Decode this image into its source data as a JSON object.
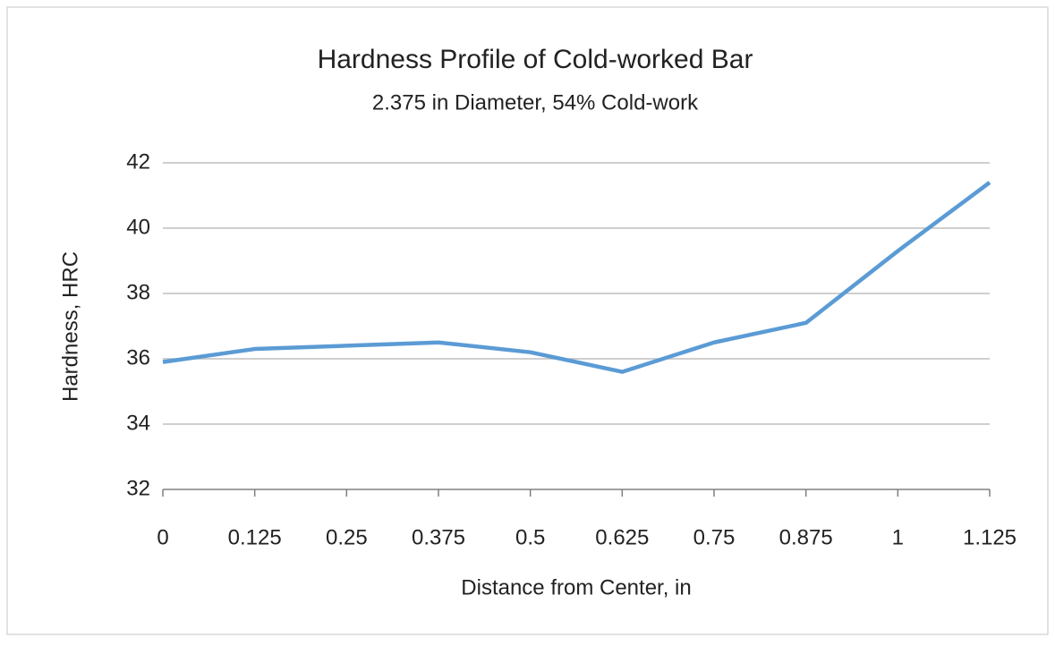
{
  "chart_data": {
    "type": "line",
    "title": "Hardness Profile of Cold-worked Bar",
    "subtitle": "2.375 in Diameter, 54% Cold-work",
    "x_label": "Distance from Center, in",
    "y_label": "Hardness, HRC",
    "x": [
      0,
      0.125,
      0.25,
      0.375,
      0.5,
      0.625,
      0.75,
      0.875,
      1,
      1.125
    ],
    "series": [
      {
        "name": "Hardness",
        "color": "#5b9bd5",
        "values": [
          35.9,
          36.3,
          36.4,
          36.5,
          36.2,
          35.6,
          36.5,
          37.1,
          39.3,
          41.4
        ]
      }
    ],
    "xlim": [
      0,
      1.125
    ],
    "xticks": [
      0,
      0.125,
      0.25,
      0.375,
      0.5,
      0.625,
      0.75,
      0.875,
      1,
      1.125
    ],
    "ylim": [
      32,
      42
    ],
    "yticks": [
      32,
      34,
      36,
      38,
      40,
      42
    ],
    "grid": true
  }
}
